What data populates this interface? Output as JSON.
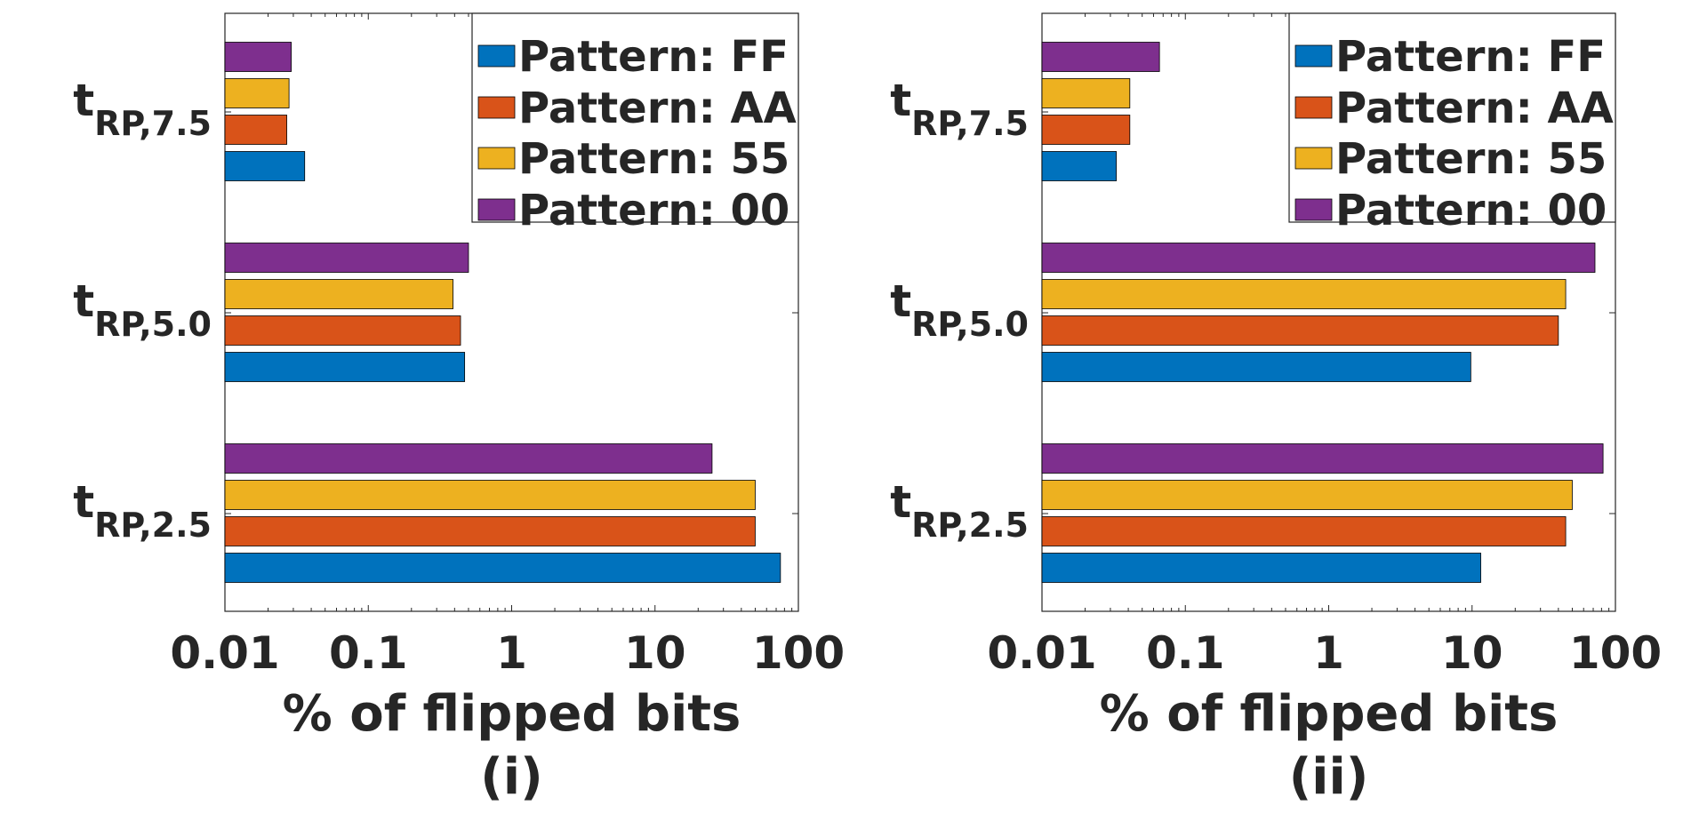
{
  "chart_data": [
    {
      "type": "bar",
      "orientation": "horizontal",
      "caption": "(i)",
      "xlabel": "% of flipped bits",
      "xscale": "log",
      "xlim": [
        0.01,
        100
      ],
      "xticks": [
        0.01,
        0.1,
        1,
        10,
        100
      ],
      "xtick_labels": [
        "0.01",
        "0.1",
        "1",
        "10",
        "100"
      ],
      "categories": [
        {
          "base": "t",
          "sub": "RP,2.5"
        },
        {
          "base": "t",
          "sub": "RP,5.0"
        },
        {
          "base": "t",
          "sub": "RP,7.5"
        }
      ],
      "series": [
        {
          "name": "Pattern: FF",
          "color": "#0072BD",
          "values": [
            75,
            0.47,
            0.036
          ]
        },
        {
          "name": "Pattern: AA",
          "color": "#D95319",
          "values": [
            50,
            0.44,
            0.027
          ]
        },
        {
          "name": "Pattern: 55",
          "color": "#EDB120",
          "values": [
            50,
            0.39,
            0.028
          ]
        },
        {
          "name": "Pattern: 00",
          "color": "#7E2F8E",
          "values": [
            25,
            0.5,
            0.029
          ]
        }
      ],
      "legend_position": "top-right",
      "grid": false
    },
    {
      "type": "bar",
      "orientation": "horizontal",
      "caption": "(ii)",
      "xlabel": "% of flipped bits",
      "xscale": "log",
      "xlim": [
        0.01,
        100
      ],
      "xticks": [
        0.01,
        0.1,
        1,
        10,
        100
      ],
      "xtick_labels": [
        "0.01",
        "0.1",
        "1",
        "10",
        "100"
      ],
      "categories": [
        {
          "base": "t",
          "sub": "RP,2.5"
        },
        {
          "base": "t",
          "sub": "RP,5.0"
        },
        {
          "base": "t",
          "sub": "RP,7.5"
        }
      ],
      "series": [
        {
          "name": "Pattern: FF",
          "color": "#0072BD",
          "values": [
            11.5,
            9.8,
            0.033
          ]
        },
        {
          "name": "Pattern: AA",
          "color": "#D95319",
          "values": [
            45,
            40,
            0.041
          ]
        },
        {
          "name": "Pattern: 55",
          "color": "#EDB120",
          "values": [
            50,
            45,
            0.041
          ]
        },
        {
          "name": "Pattern: 00",
          "color": "#7E2F8E",
          "values": [
            82,
            72,
            0.066
          ]
        }
      ],
      "legend_position": "top-right",
      "grid": false
    }
  ]
}
